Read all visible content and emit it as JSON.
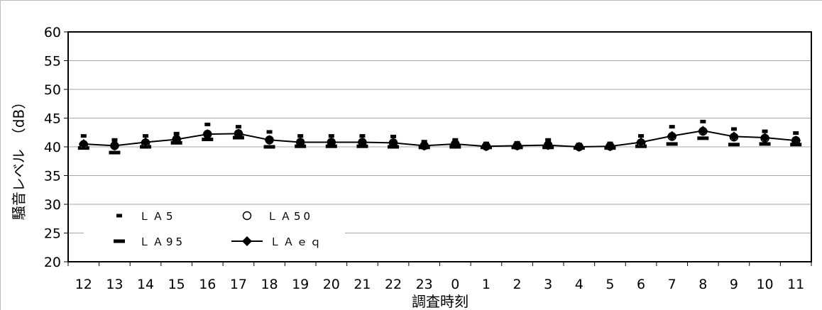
{
  "chart_data": {
    "type": "line",
    "title": "",
    "xlabel": "調査時刻",
    "ylabel": "騒音レベル　（dB）",
    "ylim": [
      20,
      60
    ],
    "yticks": [
      20,
      25,
      30,
      35,
      40,
      45,
      50,
      55,
      60
    ],
    "categories": [
      "12",
      "13",
      "14",
      "15",
      "16",
      "17",
      "18",
      "19",
      "20",
      "21",
      "22",
      "23",
      "0",
      "1",
      "2",
      "3",
      "4",
      "5",
      "6",
      "7",
      "8",
      "9",
      "10",
      "11"
    ],
    "grid": true,
    "legend_position": "bottom-left",
    "series": [
      {
        "name": "ＬＡ5",
        "marker": "short-dash",
        "values": [
          41.9,
          41.2,
          41.9,
          42.3,
          43.9,
          43.5,
          42.6,
          41.9,
          41.9,
          41.9,
          41.8,
          40.9,
          41.2,
          40.6,
          40.7,
          41.2,
          40.4,
          40.6,
          41.9,
          43.5,
          44.4,
          43.1,
          42.7,
          42.4
        ]
      },
      {
        "name": "ＬＡ50",
        "marker": "circle",
        "values": [
          40.4,
          40.2,
          40.7,
          41.3,
          42.2,
          42.3,
          41.2,
          40.8,
          40.8,
          40.8,
          40.7,
          40.2,
          40.5,
          40.1,
          40.2,
          40.3,
          40.0,
          40.1,
          40.7,
          41.8,
          42.7,
          41.7,
          41.5,
          41.1
        ]
      },
      {
        "name": "ＬＡ95",
        "marker": "long-dash",
        "values": [
          39.8,
          39.0,
          40.0,
          40.7,
          41.3,
          41.6,
          40.0,
          40.1,
          40.1,
          40.1,
          40.0,
          39.9,
          40.0,
          39.9,
          39.9,
          39.9,
          39.8,
          39.8,
          40.1,
          40.5,
          41.5,
          40.4,
          40.5,
          40.4
        ]
      },
      {
        "name": "ＬＡｅｑ",
        "marker": "diamond-line",
        "values": [
          40.5,
          40.2,
          40.8,
          41.3,
          42.2,
          42.3,
          41.2,
          40.8,
          40.8,
          40.8,
          40.7,
          40.2,
          40.5,
          40.1,
          40.2,
          40.3,
          40.0,
          40.1,
          40.8,
          41.9,
          42.8,
          41.8,
          41.6,
          41.1
        ]
      }
    ]
  },
  "colors": {
    "line": "#000000",
    "grid": "#a6a6a6",
    "frame": "#bdbdbd",
    "marker_fill": "#000000",
    "circle_fill": "#ffffff"
  }
}
